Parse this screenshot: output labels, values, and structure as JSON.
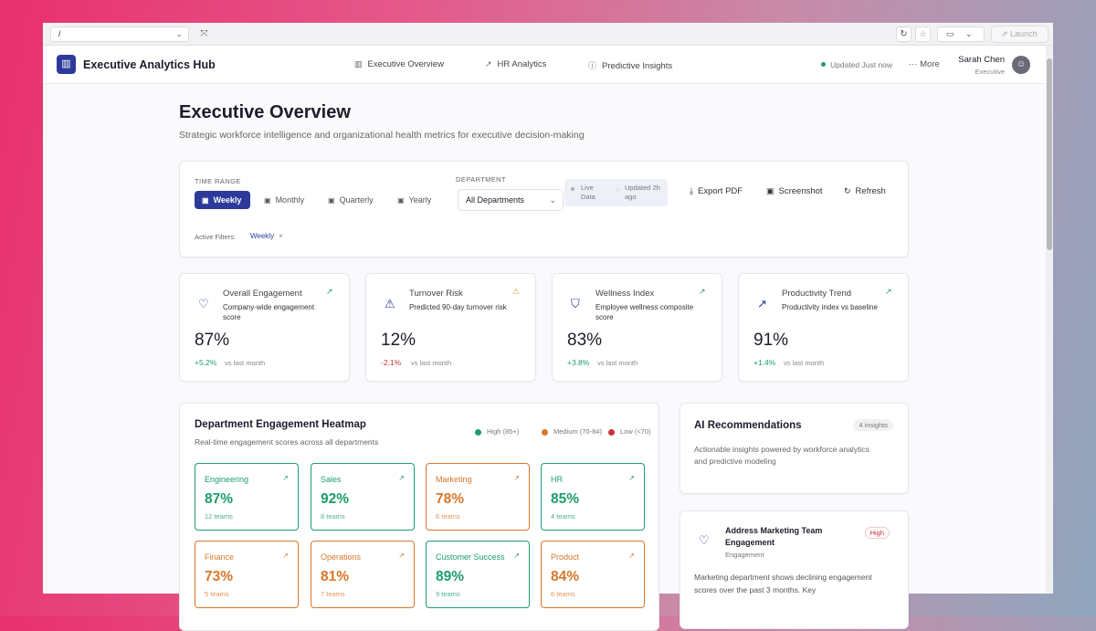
{
  "browser": {
    "address": "/",
    "launch": "Launch"
  },
  "header": {
    "title": "Executive Analytics Hub",
    "nav": [
      "Executive Overview",
      "HR Analytics",
      "Predictive Insights"
    ],
    "status": "Updated Just now",
    "more": "More",
    "user": {
      "name": "Sarah Chen",
      "role": "Executive"
    }
  },
  "page": {
    "title": "Executive Overview",
    "subtitle": "Strategic workforce intelligence and organizational health metrics for executive decision-making"
  },
  "filters": {
    "time_range_label": "TIME RANGE",
    "time_ranges": [
      "Weekly",
      "Monthly",
      "Quarterly",
      "Yearly"
    ],
    "department_label": "DEPARTMENT",
    "department": "All Departments",
    "live": "Live Data",
    "updated": "Updated 2h ago",
    "actions": [
      "Export PDF",
      "Screenshot",
      "Refresh"
    ],
    "active_label": "Active Filters:",
    "active": [
      "Weekly"
    ]
  },
  "kpis": [
    {
      "title": "Overall Engagement",
      "description": "Company-wide engagement score",
      "value": "87%",
      "change": "+5.2%",
      "period": "vs last month",
      "color": "#1f9d6b"
    },
    {
      "title": "Turnover Risk",
      "description": "Predicted 90-day turnover risk",
      "value": "12%",
      "change": "-2.1%",
      "period": "vs last month",
      "color": "#c8323a"
    },
    {
      "title": "Wellness Index",
      "description": "Employee wellness composite score",
      "value": "83%",
      "change": "+3.8%",
      "period": "vs last month",
      "color": "#1f9d6b"
    },
    {
      "title": "Productivity Trend",
      "description": "Productivity index vs baseline",
      "value": "91%",
      "change": "+1.4%",
      "period": "vs last month",
      "color": "#1f9d6b"
    }
  ],
  "heatmap": {
    "title": "Department Engagement Heatmap",
    "subtitle": "Real-time engagement scores across all departments",
    "legend": [
      {
        "label": "High (85+)",
        "color": "#1f9d6b"
      },
      {
        "label": "Medium (70-84)",
        "color": "#d9772b"
      },
      {
        "label": "Low (<70)",
        "color": "#c8323a"
      }
    ],
    "tiles": [
      {
        "name": "Engineering",
        "value": "87%",
        "teams": "12 teams",
        "color": "#1f9d6b"
      },
      {
        "name": "Sales",
        "value": "92%",
        "teams": "8 teams",
        "color": "#1f9d6b"
      },
      {
        "name": "Marketing",
        "value": "78%",
        "teams": "6 teams",
        "color": "#d9772b"
      },
      {
        "name": "HR",
        "value": "85%",
        "teams": "4 teams",
        "color": "#1f9d6b"
      },
      {
        "name": "Finance",
        "value": "73%",
        "teams": "5 teams",
        "color": "#d9772b"
      },
      {
        "name": "Operations",
        "value": "81%",
        "teams": "7 teams",
        "color": "#d9772b"
      },
      {
        "name": "Customer Success",
        "value": "89%",
        "teams": "9 teams",
        "color": "#1f9d6b"
      },
      {
        "name": "Product",
        "value": "84%",
        "teams": "6 teams",
        "color": "#d9772b"
      }
    ]
  },
  "recommendations": {
    "title": "AI Recommendations",
    "count": "4 insights",
    "description": "Actionable insights powered by workforce analytics and predictive modeling",
    "items": [
      {
        "title": "Address Marketing Team Engagement",
        "priority": "High",
        "category": "Engagement",
        "text": "Marketing department shows declining engagement scores over the past 3 months. Key"
      }
    ]
  }
}
